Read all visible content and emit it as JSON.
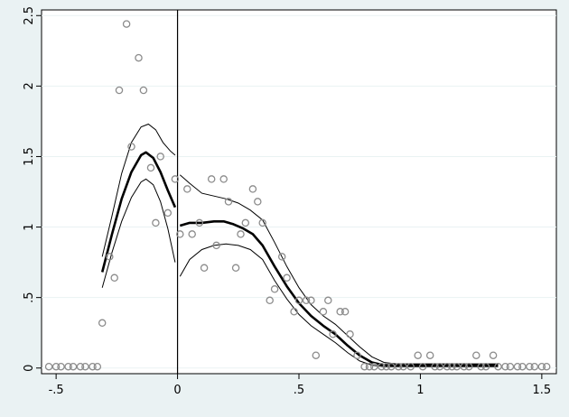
{
  "chart_data": {
    "type": "scatter",
    "title": "",
    "xlabel": "",
    "ylabel": "",
    "xlim": [
      -0.56,
      1.56
    ],
    "ylim": [
      -0.04,
      2.54
    ],
    "grid": "horizontal",
    "cutoff_x": 0,
    "x_ticks": [
      -0.5,
      0,
      0.5,
      1,
      1.5
    ],
    "x_tick_labels": [
      "-.5",
      "0",
      ".5",
      "1",
      "1.5"
    ],
    "y_ticks": [
      0,
      0.5,
      1,
      1.5,
      2,
      2.5
    ],
    "y_tick_labels": [
      "0",
      ".5",
      "1",
      "1.5",
      "2",
      "2.5"
    ],
    "scatter_points": [
      [
        -0.53,
        0.01
      ],
      [
        -0.5,
        0.01
      ],
      [
        -0.48,
        0.01
      ],
      [
        -0.45,
        0.01
      ],
      [
        -0.43,
        0.01
      ],
      [
        -0.4,
        0.01
      ],
      [
        -0.38,
        0.01
      ],
      [
        -0.35,
        0.01
      ],
      [
        -0.33,
        0.01
      ],
      [
        -0.31,
        0.32
      ],
      [
        -0.28,
        0.79
      ],
      [
        -0.26,
        0.64
      ],
      [
        -0.24,
        1.97
      ],
      [
        -0.21,
        2.44
      ],
      [
        -0.19,
        1.57
      ],
      [
        -0.16,
        2.2
      ],
      [
        -0.14,
        1.97
      ],
      [
        -0.11,
        1.42
      ],
      [
        -0.09,
        1.03
      ],
      [
        -0.07,
        1.5
      ],
      [
        -0.04,
        1.1
      ],
      [
        -0.01,
        1.34
      ],
      [
        0.01,
        0.95
      ],
      [
        0.04,
        1.27
      ],
      [
        0.06,
        0.95
      ],
      [
        0.09,
        1.03
      ],
      [
        0.11,
        0.71
      ],
      [
        0.14,
        1.34
      ],
      [
        0.16,
        0.87
      ],
      [
        0.19,
        1.34
      ],
      [
        0.21,
        1.18
      ],
      [
        0.24,
        0.71
      ],
      [
        0.26,
        0.95
      ],
      [
        0.28,
        1.03
      ],
      [
        0.31,
        1.27
      ],
      [
        0.33,
        1.18
      ],
      [
        0.35,
        1.03
      ],
      [
        0.38,
        0.48
      ],
      [
        0.4,
        0.56
      ],
      [
        0.43,
        0.79
      ],
      [
        0.45,
        0.64
      ],
      [
        0.48,
        0.4
      ],
      [
        0.5,
        0.48
      ],
      [
        0.53,
        0.48
      ],
      [
        0.55,
        0.48
      ],
      [
        0.57,
        0.09
      ],
      [
        0.6,
        0.4
      ],
      [
        0.62,
        0.48
      ],
      [
        0.64,
        0.24
      ],
      [
        0.67,
        0.4
      ],
      [
        0.69,
        0.4
      ],
      [
        0.71,
        0.24
      ],
      [
        0.74,
        0.09
      ],
      [
        0.77,
        0.01
      ],
      [
        0.79,
        0.01
      ],
      [
        0.81,
        0.01
      ],
      [
        0.84,
        0.01
      ],
      [
        0.86,
        0.01
      ],
      [
        0.88,
        0.01
      ],
      [
        0.91,
        0.01
      ],
      [
        0.93,
        0.01
      ],
      [
        0.96,
        0.01
      ],
      [
        0.99,
        0.09
      ],
      [
        1.01,
        0.01
      ],
      [
        1.04,
        0.09
      ],
      [
        1.06,
        0.01
      ],
      [
        1.08,
        0.01
      ],
      [
        1.11,
        0.01
      ],
      [
        1.13,
        0.01
      ],
      [
        1.15,
        0.01
      ],
      [
        1.18,
        0.01
      ],
      [
        1.2,
        0.01
      ],
      [
        1.23,
        0.09
      ],
      [
        1.25,
        0.01
      ],
      [
        1.27,
        0.01
      ],
      [
        1.3,
        0.09
      ],
      [
        1.32,
        0.01
      ],
      [
        1.35,
        0.01
      ],
      [
        1.37,
        0.01
      ],
      [
        1.4,
        0.01
      ],
      [
        1.42,
        0.01
      ],
      [
        1.45,
        0.01
      ],
      [
        1.47,
        0.01
      ],
      [
        1.5,
        0.01
      ],
      [
        1.52,
        0.01
      ]
    ],
    "left_segment": {
      "fit": [
        [
          -0.31,
          0.68
        ],
        [
          -0.27,
          0.95
        ],
        [
          -0.23,
          1.2
        ],
        [
          -0.19,
          1.39
        ],
        [
          -0.15,
          1.51
        ],
        [
          -0.13,
          1.53
        ],
        [
          -0.1,
          1.49
        ],
        [
          -0.07,
          1.39
        ],
        [
          -0.04,
          1.26
        ],
        [
          -0.01,
          1.14
        ]
      ],
      "ci_upper": [
        [
          -0.31,
          0.79
        ],
        [
          -0.27,
          1.08
        ],
        [
          -0.23,
          1.38
        ],
        [
          -0.19,
          1.6
        ],
        [
          -0.15,
          1.71
        ],
        [
          -0.12,
          1.73
        ],
        [
          -0.09,
          1.69
        ],
        [
          -0.06,
          1.6
        ],
        [
          -0.03,
          1.54
        ],
        [
          -0.01,
          1.51
        ]
      ],
      "ci_lower": [
        [
          -0.31,
          0.57
        ],
        [
          -0.27,
          0.82
        ],
        [
          -0.23,
          1.04
        ],
        [
          -0.19,
          1.21
        ],
        [
          -0.15,
          1.32
        ],
        [
          -0.13,
          1.34
        ],
        [
          -0.1,
          1.3
        ],
        [
          -0.07,
          1.18
        ],
        [
          -0.04,
          0.99
        ],
        [
          -0.01,
          0.75
        ]
      ]
    },
    "right_segment": {
      "fit": [
        [
          0.01,
          1.01
        ],
        [
          0.05,
          1.03
        ],
        [
          0.1,
          1.03
        ],
        [
          0.15,
          1.04
        ],
        [
          0.19,
          1.04
        ],
        [
          0.23,
          1.02
        ],
        [
          0.27,
          0.99
        ],
        [
          0.31,
          0.95
        ],
        [
          0.35,
          0.87
        ],
        [
          0.4,
          0.72
        ],
        [
          0.45,
          0.58
        ],
        [
          0.5,
          0.46
        ],
        [
          0.55,
          0.37
        ],
        [
          0.6,
          0.3
        ],
        [
          0.65,
          0.24
        ],
        [
          0.7,
          0.16
        ],
        [
          0.75,
          0.09
        ],
        [
          0.8,
          0.04
        ],
        [
          0.85,
          0.02
        ],
        [
          0.9,
          0.02
        ],
        [
          1.0,
          0.02
        ],
        [
          1.1,
          0.02
        ],
        [
          1.2,
          0.02
        ],
        [
          1.32,
          0.02
        ]
      ],
      "ci_upper": [
        [
          0.01,
          1.37
        ],
        [
          0.05,
          1.31
        ],
        [
          0.1,
          1.24
        ],
        [
          0.15,
          1.22
        ],
        [
          0.2,
          1.2
        ],
        [
          0.25,
          1.17
        ],
        [
          0.3,
          1.12
        ],
        [
          0.35,
          1.05
        ],
        [
          0.4,
          0.89
        ],
        [
          0.45,
          0.72
        ],
        [
          0.5,
          0.57
        ],
        [
          0.55,
          0.45
        ],
        [
          0.6,
          0.37
        ],
        [
          0.65,
          0.31
        ],
        [
          0.7,
          0.23
        ],
        [
          0.75,
          0.15
        ],
        [
          0.8,
          0.08
        ],
        [
          0.85,
          0.04
        ],
        [
          0.9,
          0.03
        ],
        [
          1.0,
          0.03
        ],
        [
          1.1,
          0.03
        ],
        [
          1.2,
          0.03
        ],
        [
          1.32,
          0.03
        ]
      ],
      "ci_lower": [
        [
          0.01,
          0.65
        ],
        [
          0.05,
          0.77
        ],
        [
          0.1,
          0.84
        ],
        [
          0.15,
          0.87
        ],
        [
          0.2,
          0.88
        ],
        [
          0.25,
          0.87
        ],
        [
          0.3,
          0.84
        ],
        [
          0.35,
          0.77
        ],
        [
          0.4,
          0.62
        ],
        [
          0.45,
          0.49
        ],
        [
          0.5,
          0.38
        ],
        [
          0.55,
          0.3
        ],
        [
          0.6,
          0.24
        ],
        [
          0.65,
          0.18
        ],
        [
          0.7,
          0.11
        ],
        [
          0.75,
          0.05
        ],
        [
          0.8,
          0.02
        ],
        [
          0.85,
          0.01
        ],
        [
          0.9,
          0.01
        ],
        [
          1.0,
          0.01
        ],
        [
          1.1,
          0.01
        ],
        [
          1.2,
          0.01
        ],
        [
          1.32,
          0.01
        ]
      ]
    },
    "colors": {
      "background": "#eaf2f3",
      "plot_area": "#ffffff",
      "grid": "#eaf2f3",
      "points": "#8c8c8c",
      "lines": "#000000",
      "cutoff_line": "#000000"
    }
  }
}
